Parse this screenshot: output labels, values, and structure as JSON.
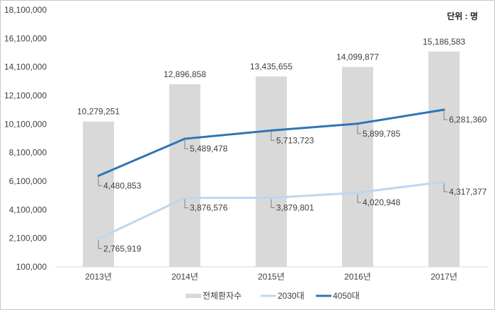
{
  "chart_data": {
    "type": "bar",
    "unit_label": "단위 : 명",
    "categories": [
      "2013년",
      "2014년",
      "2015년",
      "2016년",
      "2017년"
    ],
    "ylim": [
      100000,
      18100000
    ],
    "yticks": [
      100000,
      2100000,
      4100000,
      6100000,
      8100000,
      10100000,
      12100000,
      14100000,
      16100000,
      18100000
    ],
    "ytick_labels": [
      "100,000",
      "2,100,000",
      "4,100,000",
      "6,100,000",
      "8,100,000",
      "10,100,000",
      "12,100,000",
      "14,100,000",
      "16,100,000",
      "18,100,000"
    ],
    "secondary_ylim": [
      2000000,
      9000000
    ],
    "grid": false,
    "legend": "bottom",
    "series": [
      {
        "name": "전체환자수",
        "type": "bar",
        "axis": "primary",
        "color": "#d9d9d9",
        "values": [
          10279251,
          12896858,
          13435655,
          14099877,
          15186583
        ],
        "labels": [
          "10,279,251",
          "12,896,858",
          "13,435,655",
          "14,099,877",
          "15,186,583"
        ]
      },
      {
        "name": "2030대",
        "type": "line",
        "axis": "secondary",
        "color": "#bdd7ee",
        "values": [
          2765919,
          3876576,
          3879801,
          4020948,
          4317377
        ],
        "labels": [
          "2,765,919",
          "3,876,576",
          "3,879,801",
          "4,020,948",
          "4,317,377"
        ]
      },
      {
        "name": "4050대",
        "type": "line",
        "axis": "secondary",
        "color": "#2e75b6",
        "values": [
          4480853,
          5489478,
          5713723,
          5899785,
          6281360
        ],
        "labels": [
          "4,480,853",
          "5,489,478",
          "5,713,723",
          "5,899,785",
          "6,281,360"
        ]
      }
    ]
  }
}
